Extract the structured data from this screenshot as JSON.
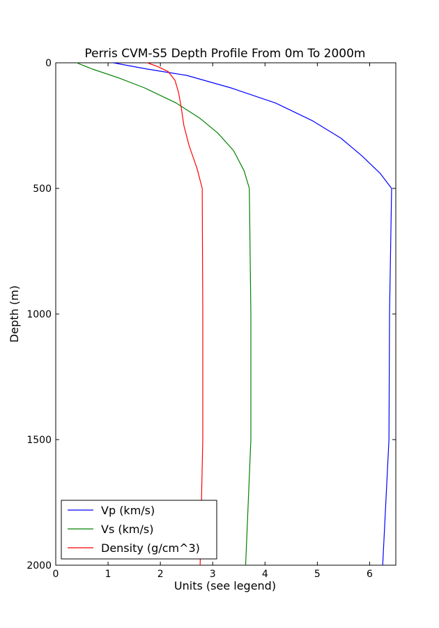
{
  "chart_data": {
    "type": "line",
    "title": "Perris CVM-S5 Depth Profile From 0m To 2000m",
    "xlabel": "Units (see legend)",
    "ylabel": "Depth (m)",
    "xlim": [
      0,
      6.5
    ],
    "ylim": [
      2000,
      0
    ],
    "y_inverted": true,
    "xticks": [
      0,
      1,
      2,
      3,
      4,
      5,
      6
    ],
    "yticks": [
      0,
      500,
      1000,
      1500,
      2000
    ],
    "grid": false,
    "legend_position": "lower-left",
    "series": [
      {
        "name": "Vp (km/s)",
        "color": "#0000ff",
        "points": [
          [
            1.1,
            0
          ],
          [
            1.75,
            25
          ],
          [
            2.5,
            50
          ],
          [
            3.35,
            100
          ],
          [
            4.2,
            160
          ],
          [
            4.9,
            230
          ],
          [
            5.45,
            300
          ],
          [
            5.85,
            370
          ],
          [
            6.2,
            440
          ],
          [
            6.42,
            500
          ],
          [
            6.38,
            1000
          ],
          [
            6.37,
            1500
          ],
          [
            6.25,
            2000
          ]
        ]
      },
      {
        "name": "Vs (km/s)",
        "color": "#008000",
        "points": [
          [
            0.4,
            0
          ],
          [
            0.7,
            25
          ],
          [
            1.2,
            60
          ],
          [
            1.7,
            100
          ],
          [
            2.3,
            160
          ],
          [
            2.75,
            220
          ],
          [
            3.1,
            280
          ],
          [
            3.4,
            350
          ],
          [
            3.6,
            430
          ],
          [
            3.7,
            500
          ],
          [
            3.73,
            1000
          ],
          [
            3.73,
            1500
          ],
          [
            3.63,
            2000
          ]
        ]
      },
      {
        "name": "Density (g/cm^3)",
        "color": "#ff0000",
        "points": [
          [
            1.75,
            0
          ],
          [
            1.95,
            15
          ],
          [
            2.15,
            35
          ],
          [
            2.28,
            70
          ],
          [
            2.35,
            120
          ],
          [
            2.4,
            180
          ],
          [
            2.45,
            250
          ],
          [
            2.55,
            330
          ],
          [
            2.7,
            420
          ],
          [
            2.8,
            500
          ],
          [
            2.81,
            1000
          ],
          [
            2.81,
            1500
          ],
          [
            2.76,
            2000
          ]
        ]
      }
    ]
  }
}
